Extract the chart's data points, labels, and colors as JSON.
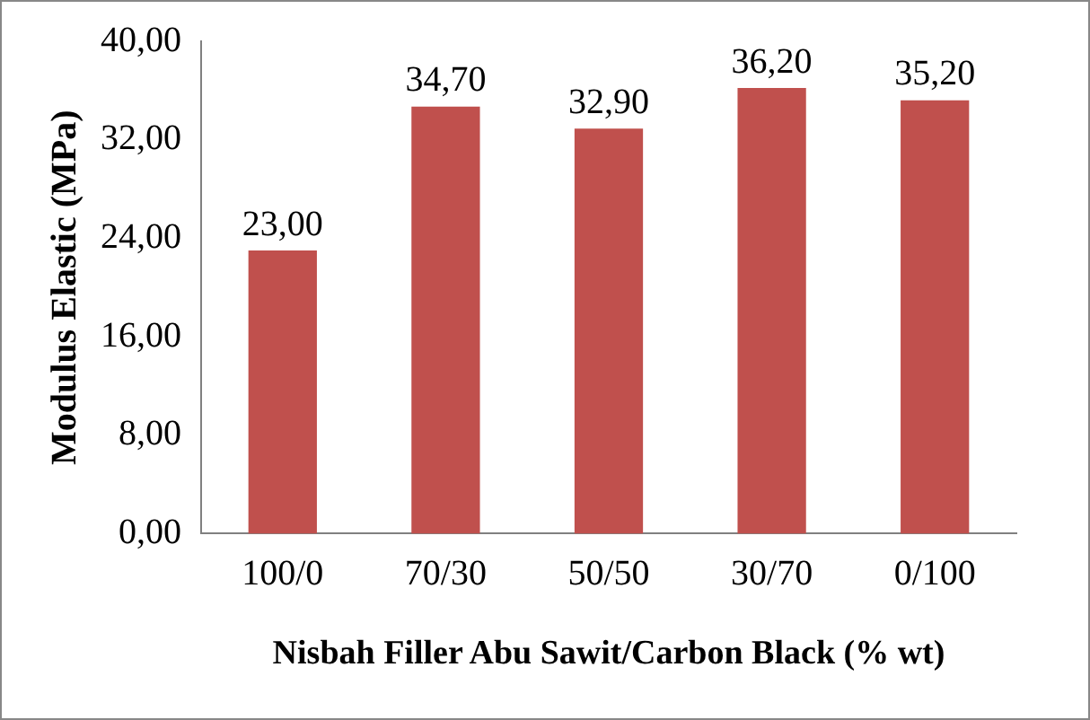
{
  "chart_data": {
    "type": "bar",
    "ylabel": "Modulus Elastic (MPa)",
    "xlabel": "Nisbah Filler Abu Sawit/Carbon Black (% wt)",
    "categories": [
      "100/0",
      "70/30",
      "50/50",
      "30/70",
      "0/100"
    ],
    "values": [
      23.0,
      34.7,
      32.9,
      36.2,
      35.2
    ],
    "value_labels": [
      "23,00",
      "34,70",
      "32,90",
      "36,20",
      "35,20"
    ],
    "color": "#c0504d",
    "ylim": [
      0,
      40
    ],
    "yticks": [
      {
        "value": 0,
        "label": "0,00"
      },
      {
        "value": 8,
        "label": "8,00"
      },
      {
        "value": 16,
        "label": "16,00"
      },
      {
        "value": 24,
        "label": "24,00"
      },
      {
        "value": 32,
        "label": "32,00"
      },
      {
        "value": 40,
        "label": "40,00"
      }
    ],
    "grid": false,
    "legend": false
  }
}
